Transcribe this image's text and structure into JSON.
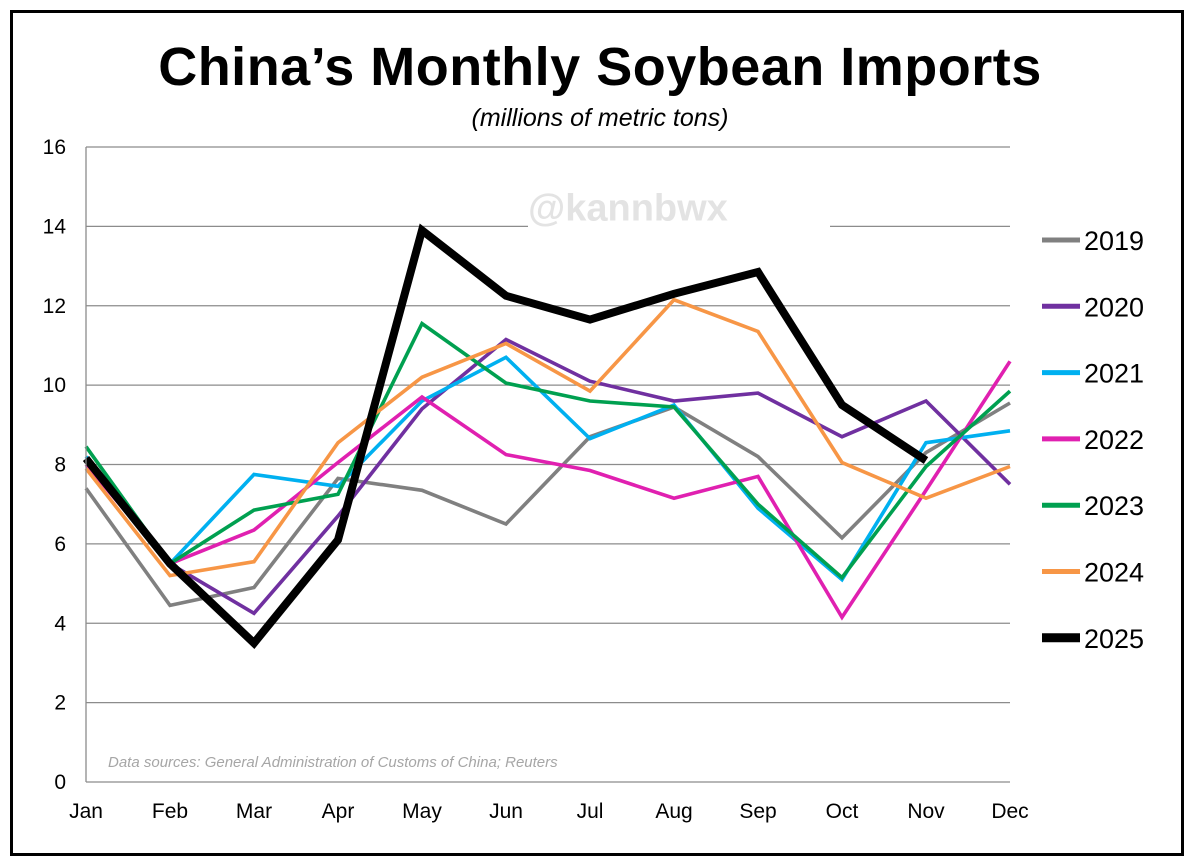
{
  "chart_data": {
    "type": "line",
    "title": "China’s Monthly Soybean Imports",
    "subtitle": "(millions of metric tons)",
    "watermark": "@kannbwx",
    "source_note": "Data sources: General Administration of Customs of China; Reuters",
    "xlabel": "",
    "ylabel": "",
    "ylim": [
      0,
      16
    ],
    "yticks": [
      "0",
      "2",
      "4",
      "6",
      "8",
      "10",
      "12",
      "14",
      "16"
    ],
    "categories": [
      "Jan",
      "Feb",
      "Mar",
      "Apr",
      "May",
      "Jun",
      "Jul",
      "Aug",
      "Sep",
      "Oct",
      "Nov",
      "Dec"
    ],
    "grid": "horizontal",
    "legend_position": "right",
    "series": [
      {
        "name": "2019",
        "color": "#808080",
        "values": [
          7.4,
          4.45,
          4.9,
          7.65,
          7.35,
          6.5,
          8.7,
          9.45,
          8.2,
          6.15,
          8.3,
          9.55
        ]
      },
      {
        "name": "2020",
        "color": "#7030a0",
        "values": [
          8.1,
          5.5,
          4.25,
          6.7,
          9.4,
          11.15,
          10.1,
          9.6,
          9.8,
          8.7,
          9.6,
          7.5
        ]
      },
      {
        "name": "2021",
        "color": "#00b0f0",
        "values": [
          8.2,
          5.5,
          7.75,
          7.45,
          9.6,
          10.7,
          8.65,
          9.5,
          6.9,
          5.1,
          8.55,
          8.85
        ]
      },
      {
        "name": "2022",
        "color": "#e020b0",
        "values": [
          8.0,
          5.5,
          6.35,
          8.05,
          9.7,
          8.25,
          7.85,
          7.15,
          7.7,
          4.15,
          7.35,
          10.6
        ]
      },
      {
        "name": "2023",
        "color": "#00a050",
        "values": [
          8.45,
          5.5,
          6.85,
          7.25,
          11.55,
          10.05,
          9.6,
          9.45,
          7.0,
          5.15,
          7.95,
          9.85
        ]
      },
      {
        "name": "2024",
        "color": "#f79646",
        "values": [
          7.9,
          5.2,
          5.55,
          8.55,
          10.2,
          11.05,
          9.85,
          12.15,
          11.35,
          8.05,
          7.15,
          7.95
        ]
      },
      {
        "name": "2025",
        "color": "#000000",
        "values": [
          8.15,
          5.5,
          3.5,
          6.1,
          13.9,
          12.25,
          11.65,
          12.3,
          12.85,
          9.5,
          8.1,
          null
        ]
      }
    ]
  }
}
